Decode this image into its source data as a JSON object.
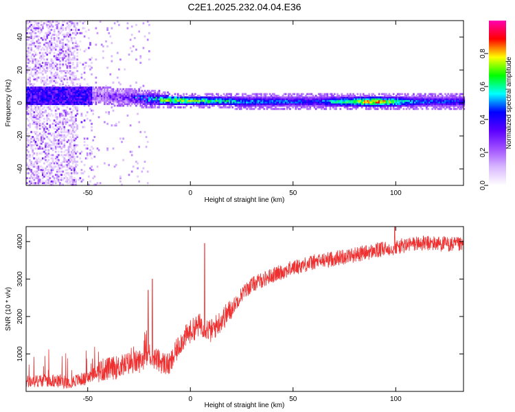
{
  "title": "C2E1.2025.232.04.04.E36",
  "chart_data": [
    {
      "type": "heatmap",
      "xlabel": "Height of straight line (km)",
      "ylabel": "Frequency (Hz)",
      "xlim": [
        -80,
        133
      ],
      "ylim": [
        -50,
        50
      ],
      "xticks": [
        -50,
        0,
        50,
        100
      ],
      "yticks": [
        -40,
        -20,
        0,
        20,
        40
      ],
      "colorbar": {
        "label": "Normalized spectral amplitude",
        "range": [
          0,
          1
        ],
        "ticks": [
          0.0,
          0.2,
          0.4,
          0.6,
          0.8
        ],
        "tick_labels": [
          "0.0",
          "0.2",
          "0.4",
          "0.6",
          "0.8"
        ],
        "colormap": [
          "#ffffff",
          "#d9b8ff",
          "#a050ff",
          "#5a00ff",
          "#0000ff",
          "#00ffff",
          "#00ff00",
          "#ffff00",
          "#ff0000",
          "#ff00b0"
        ]
      },
      "ridge": {
        "description_points": [
          {
            "x": -47,
            "freq": 4.0,
            "amplitude": 0.3
          },
          {
            "x": -30,
            "freq": 3.0,
            "amplitude": 0.45
          },
          {
            "x": -15,
            "freq": 1.5,
            "amplitude": 0.8
          },
          {
            "x": 5,
            "freq": 1.0,
            "amplitude": 0.75
          },
          {
            "x": 25,
            "freq": 0.5,
            "amplitude": 0.6
          },
          {
            "x": 60,
            "freq": 0.5,
            "amplitude": 0.5
          },
          {
            "x": 90,
            "freq": 0.5,
            "amplitude": 0.95
          },
          {
            "x": 110,
            "freq": 0.5,
            "amplitude": 0.55
          },
          {
            "x": 133,
            "freq": 0.5,
            "amplitude": 0.5
          }
        ],
        "grid": false
      }
    },
    {
      "type": "line",
      "xlabel": "Height of straight line (km)",
      "ylabel": "SNR (10 * v/v)",
      "xlim": [
        -80,
        133
      ],
      "ylim": [
        0,
        4400
      ],
      "xticks": [
        -50,
        0,
        50,
        100
      ],
      "yticks": [
        1000,
        2000,
        3000,
        4000
      ],
      "series_color": "#ee3030",
      "grid": false,
      "series": [
        {
          "x": [
            -80,
            -70,
            -60,
            -50,
            -45,
            -40,
            -35,
            -30,
            -25,
            -20,
            -15,
            -10,
            -5,
            0,
            5,
            10,
            15,
            20,
            25,
            30,
            40,
            50,
            60,
            70,
            80,
            90,
            100,
            110,
            120,
            133
          ],
          "values": [
            250,
            300,
            250,
            350,
            550,
            600,
            650,
            750,
            800,
            1000,
            800,
            700,
            1300,
            1600,
            1800,
            1600,
            1900,
            2200,
            2600,
            2850,
            3100,
            3300,
            3450,
            3550,
            3650,
            3750,
            3850,
            3950,
            3950,
            3900
          ],
          "spikes": [
            {
              "x": -20.5,
              "y": 2700
            },
            {
              "x": -18.5,
              "y": 3000
            },
            {
              "x": 7,
              "y": 3950
            },
            {
              "x": 99.5,
              "y": 4400
            }
          ]
        }
      ]
    }
  ]
}
